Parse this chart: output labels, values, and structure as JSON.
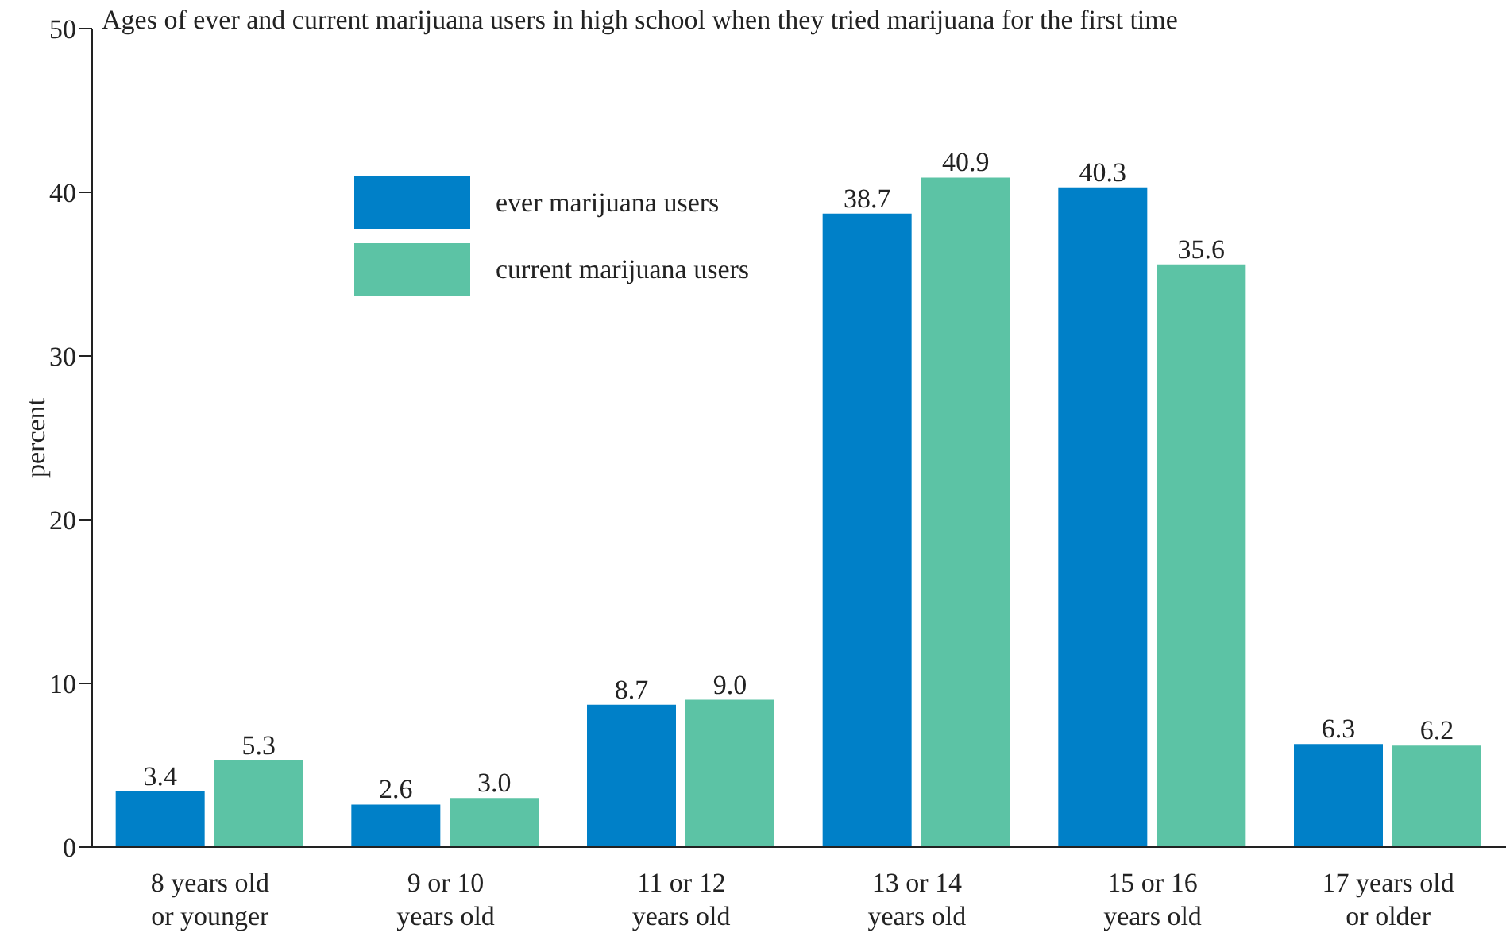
{
  "chart_data": {
    "type": "bar",
    "title": "Ages of ever and current marijuana users in high school when they tried marijuana for the first time",
    "ylabel": "percent",
    "categories": [
      "8 years old\nor younger",
      "9 or 10\nyears old",
      "11 or 12\nyears old",
      "13 or 14\nyears old",
      "15 or 16\nyears old",
      "17 years old\nor older"
    ],
    "series": [
      {
        "name": "ever marijuana users",
        "color": "#0080c8",
        "values": [
          3.4,
          2.6,
          8.7,
          38.7,
          40.3,
          6.3
        ],
        "value_labels": [
          "3.4",
          "2.6",
          "8.7",
          "38.7",
          "40.3",
          "6.3"
        ]
      },
      {
        "name": "current marijuana users",
        "color": "#5cc3a5",
        "values": [
          5.3,
          3.0,
          9.0,
          40.9,
          35.6,
          6.2
        ],
        "value_labels": [
          "5.3",
          "3.0",
          "9.0",
          "40.9",
          "35.6",
          "6.2"
        ]
      }
    ],
    "ylim": [
      0,
      50
    ],
    "yticks": [
      0,
      10,
      20,
      30,
      40,
      50
    ],
    "grid": false,
    "legend": "top left"
  }
}
